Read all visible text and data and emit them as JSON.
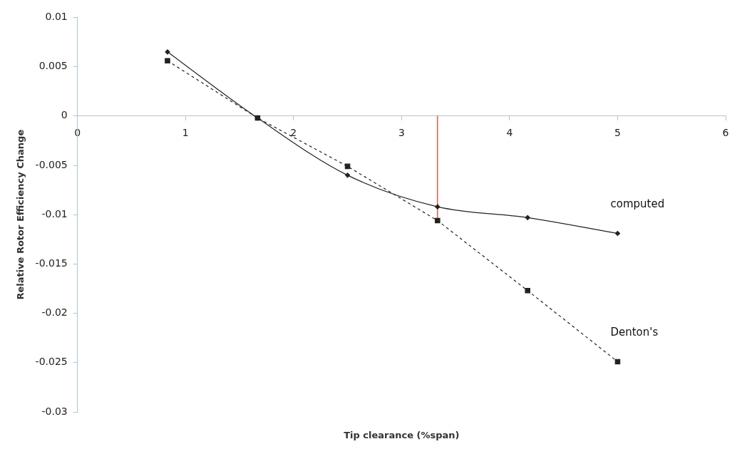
{
  "chart_data": {
    "type": "line",
    "xlabel": "Tip clearance (%span)",
    "ylabel": "Relative Rotor Efficiency Change",
    "xlim": [
      0,
      6
    ],
    "xticks": [
      0,
      1,
      2,
      3,
      4,
      5,
      6
    ],
    "ylim": [
      -0.03,
      0.01
    ],
    "yticks": [
      -0.03,
      -0.025,
      -0.02,
      -0.015,
      -0.01,
      -0.005,
      0,
      0.005,
      0.01
    ],
    "grid": false,
    "legend": false,
    "series": [
      {
        "name": "computed",
        "color": "#222222",
        "marker": "diamond",
        "line_style": "solid",
        "x": [
          0.833,
          1.667,
          2.5,
          3.333,
          4.167,
          5
        ],
        "values": [
          0.0065,
          -0.0002,
          -0.006,
          -0.0092,
          -0.0103,
          -0.0119
        ]
      },
      {
        "name": "Denton's",
        "color": "#222222",
        "marker": "square",
        "line_style": "dashed",
        "x": [
          0.833,
          1.667,
          2.5,
          3.333,
          4.167,
          5
        ],
        "values": [
          0.0056,
          -0.0002,
          -0.0051,
          -0.0106,
          -0.0177,
          -0.0249
        ]
      },
      {
        "color": "#ff2a10",
        "marker": "none",
        "line_style": "solid",
        "x": [
          3.333,
          3.333
        ],
        "values": [
          0,
          -0.0106
        ]
      }
    ]
  }
}
